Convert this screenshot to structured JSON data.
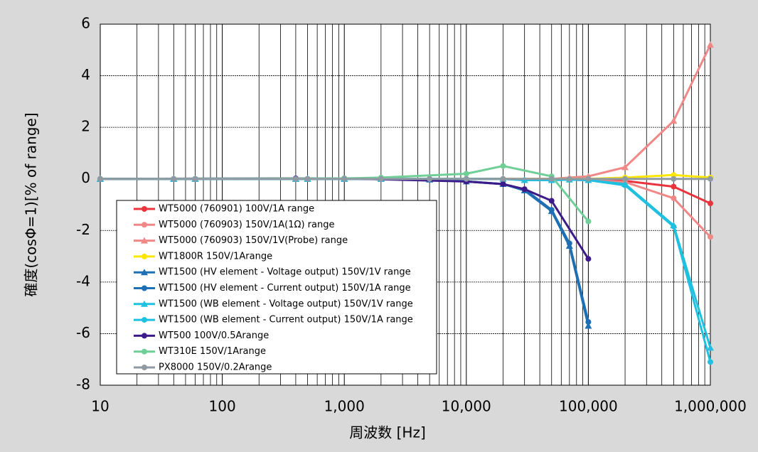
{
  "chart_data": {
    "type": "line",
    "x_label": "周波数 [Hz]",
    "y_label": "確度(cosΦ=1)[% of range]",
    "x_log": true,
    "grid": true,
    "legend": "lower left",
    "xlim": [
      10,
      1000000
    ],
    "xticks": [
      10,
      100,
      {
        "value": 1000,
        "label": "1,000"
      },
      {
        "value": 10000,
        "label": "10,000"
      },
      {
        "value": 100000,
        "label": "100,000"
      },
      {
        "value": 1000000,
        "label": "1,000,000"
      }
    ],
    "ylim": [
      -8,
      6
    ],
    "yticks": [
      6,
      4,
      2,
      0,
      -2,
      -4,
      -6,
      -8
    ],
    "series": [
      {
        "name": "WT5000 (760901) 100V/1A range",
        "color": "#e8343c",
        "marker": "circle",
        "x": [
          10,
          40,
          60,
          400,
          500,
          1000,
          2000,
          5000,
          10000,
          20000,
          50000,
          70000,
          100000,
          200000,
          500000,
          1000000
        ],
        "values": [
          0,
          0,
          0,
          0,
          0,
          0,
          0,
          0,
          0,
          0,
          -0.02,
          -0.03,
          -0.05,
          -0.08,
          -0.3,
          -0.95
        ]
      },
      {
        "name": "WT5000 (760903) 150V/1A(1Ω) range",
        "color": "#f08888",
        "marker": "circle",
        "x": [
          10,
          40,
          60,
          400,
          500,
          1000,
          2000,
          5000,
          10000,
          20000,
          50000,
          70000,
          100000,
          200000,
          500000,
          1000000
        ],
        "values": [
          0,
          0,
          0,
          0,
          0,
          0,
          0,
          0,
          0,
          0,
          -0.02,
          -0.03,
          -0.05,
          -0.12,
          -0.75,
          -2.25
        ]
      },
      {
        "name": "WT5000 (760903) 150V/1V(Probe) range",
        "color": "#f08888",
        "marker": "triangle",
        "x": [
          10,
          40,
          60,
          400,
          500,
          1000,
          2000,
          5000,
          10000,
          20000,
          50000,
          70000,
          100000,
          200000,
          500000,
          1000000
        ],
        "values": [
          0,
          0,
          0,
          0,
          0,
          0,
          0,
          0,
          0,
          0,
          0,
          0.05,
          0.1,
          0.45,
          2.25,
          5.2
        ]
      },
      {
        "name": "WT1800R 150V/1Arange",
        "color": "#ffe600",
        "marker": "circle",
        "x": [
          10,
          40,
          60,
          400,
          500,
          1000,
          2000,
          5000,
          10000,
          20000,
          50000,
          70000,
          100000,
          200000,
          500000,
          1000000
        ],
        "values": [
          0,
          0,
          0,
          0,
          0,
          0,
          0,
          0,
          0,
          0,
          0,
          0,
          0,
          0.05,
          0.15,
          0.05
        ]
      },
      {
        "name": "WT1500 (HV element - Voltage output) 150V/1V range",
        "color": "#1f6fb4",
        "marker": "triangle",
        "x": [
          10,
          40,
          60,
          400,
          500,
          1000,
          2000,
          5000,
          10000,
          20000,
          30000,
          50000,
          70000,
          100000
        ],
        "values": [
          0,
          0,
          0,
          0,
          0,
          0,
          0,
          -0.03,
          -0.1,
          -0.2,
          -0.45,
          -1.25,
          -2.6,
          -5.7
        ]
      },
      {
        "name": "WT1500 (HV element - Current output) 150V/1A range",
        "color": "#1f6fb4",
        "marker": "circle",
        "x": [
          10,
          40,
          60,
          400,
          500,
          1000,
          2000,
          5000,
          10000,
          20000,
          30000,
          50000,
          70000,
          100000
        ],
        "values": [
          0,
          0,
          0,
          0,
          0,
          0,
          0,
          -0.03,
          -0.1,
          -0.2,
          -0.4,
          -1.2,
          -2.5,
          -5.55
        ]
      },
      {
        "name": "WT1500 (WB element - Voltage output) 150V/1V range",
        "color": "#1fc0e0",
        "marker": "triangle",
        "x": [
          10,
          40,
          60,
          400,
          500,
          1000,
          2000,
          5000,
          10000,
          20000,
          30000,
          50000,
          70000,
          100000,
          200000,
          500000,
          1000000
        ],
        "values": [
          0,
          0,
          0,
          0,
          0,
          0,
          0,
          0,
          0,
          0,
          -0.05,
          -0.05,
          -0.03,
          -0.05,
          -0.2,
          -1.8,
          -6.55
        ]
      },
      {
        "name": "WT1500 (WB element - Current output) 150V/1A range",
        "color": "#1fc0e0",
        "marker": "circle",
        "x": [
          10,
          40,
          60,
          400,
          500,
          1000,
          2000,
          5000,
          10000,
          20000,
          30000,
          50000,
          70000,
          100000,
          200000,
          500000,
          1000000
        ],
        "values": [
          0,
          0,
          0,
          0,
          0,
          0,
          0,
          0,
          0,
          0,
          -0.05,
          -0.05,
          -0.03,
          -0.05,
          -0.25,
          -1.85,
          -7.1
        ]
      },
      {
        "name": "WT500 100V/0.5Arange",
        "color": "#3d1a8a",
        "marker": "circle",
        "x": [
          10,
          400,
          1000,
          10000,
          20000,
          30000,
          50000,
          100000
        ],
        "values": [
          0,
          0.02,
          0.02,
          -0.1,
          -0.2,
          -0.4,
          -0.85,
          -3.1
        ]
      },
      {
        "name": "WT310E 150V/1Arange",
        "color": "#6fcf97",
        "marker": "circle",
        "x": [
          10,
          1000,
          2000,
          10000,
          20000,
          50000,
          100000
        ],
        "values": [
          0,
          0.02,
          0.05,
          0.2,
          0.5,
          0.1,
          -1.65
        ]
      },
      {
        "name": "PX8000 150V/0.2Arange",
        "color": "#909aa3",
        "marker": "circle",
        "x": [
          10,
          40,
          60,
          400,
          500,
          1000,
          2000,
          5000,
          10000,
          20000,
          50000,
          70000,
          100000,
          200000,
          500000,
          1000000
        ],
        "values": [
          0,
          0,
          0,
          0,
          0,
          0,
          0,
          0,
          0,
          0,
          0,
          0,
          0,
          0,
          0,
          0
        ]
      }
    ]
  }
}
